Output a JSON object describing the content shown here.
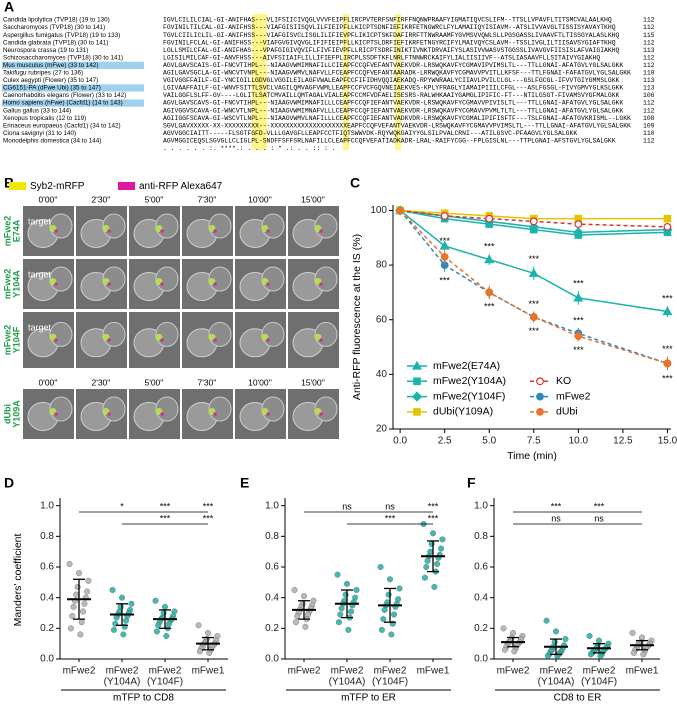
{
  "panel_labels": [
    "A",
    "B",
    "C",
    "D",
    "E",
    "F"
  ],
  "alignment": {
    "rows": [
      {
        "name": "Candida lipolytica (TVP18) (19 to 130)",
        "seq": "IGVLCILILCIAL-GI-ANIFHAS---VLIFSIICIVQGLVVVFEIPFLIRCPVTERFSNFIRFFNQNWPRAAFYIGMATIQVCSLIFM--TTSLLVPAVFLTITSMCVALAALKHQ",
        "end": 112
      },
      {
        "name": "Saccharomyces (TVP18) (30 to 141)",
        "seq": "FGVINILTILCAL-GI-ANIFHSS---VIAFGISIISQVLILFIEIPFLLKICPTSDNFIEFIKRFETNGWRCLFYLAMAIIQYISIAVM--ATSLIVVAVGLTISSISYAVAYTKHQ",
        "end": 112
      },
      {
        "name": "Aspergillus fumigatus (TVP18) (19 to 133)",
        "seq": "TGVLCIILICLIL-GI-ANIFHSS---VIAFGISVCLISGLILIFIEVPFLIKICPTSKFDAFIRRFTTNWRAAMFYGVMSVVQWLSLLPGSGASSLIVAAVFTLTISSGYALASLKHQ",
        "end": 115
      },
      {
        "name": "Candida glabrata (TVP18) (30 to 141)",
        "seq": "FGVINILFCLAL-GI-ANIFHSS---VIAFGVGIVQVGLIFIFIEIPFLLKICPTSLDRFIEFIKRFETNGYRCIFYLMAIVQYCSLAVM--TSSLIVGLILTIISAVSYGIAFTKHQ",
        "end": 112
      },
      {
        "name": "Neurospora crassa (19 to 131)",
        "seq": "LGLLSMILCFAL-GI-ANIFHAS---VPAFGIGIVQVIFLFIVFIEVPFLLRICPTSDRFINIKTIVNKTDRVAIFYSLASIVVWASVSTGGSSLIVAVGVFIISISLAFVAIGIAKHQ",
        "end": 113
      },
      {
        "name": "Schizosaccharomyces (TVP18) (30 to 141)",
        "seq": "LGISILMILCAF-GI-ANVFHSS---AIVFSIIAIFLILLIFIEFPLIRCPLSSDFTKFLNRLFTNNWRCKAIFYLIALIISIIVF--ATSLIASAAVFLLSITAIVYGIAKHQ",
        "end": 112
      },
      {
        "name": "Mus musculus (mFwe) (33 to 142)",
        "seq": "AGVLGAVSCAIS-GI-FNCVTIHPL---NIAAGVWMIMNAFILLCIEAPFCCQFVEFANTVAEKVDR-LRSWQKAVFYCGMAVIPVIMSLTL---TTLLGNAI-AFATGVLYGLSALGKK",
        "end": 112,
        "highlight": true
      },
      {
        "name": "Takifugu rubripes (27 to 136)",
        "seq": "AGILGAVSGCLA-GI-WNCVTVNPL---NIAAGVWMVLNAFVLLFCEAPFCCQFVEFANTAARADK-LRRWQKAVFYCGMAVVPVITLLKFSF---TTLFGNAI-FAFATGVLYGLSALGKK",
        "end": 110
      },
      {
        "name": "Culex aegypti (Flower) (35 to 147)",
        "seq": "VGIVGGFFAILF-GI-YNCIGILLGDVGLVGGILEILAGFVWALEAPFCCFIFIDHVQQIAEKADQ-RPYWNRAALYCIIAVLPVILCLGL---GSLFGCGL-IFVVTGIYGMMSLGKK",
        "end": 113
      },
      {
        "name": "CG6151-PA (dFwe Ubi) (35 to 147)",
        "seq": "LGIVAAFFAILF-GI-WNVFSITTLSVCLVAGILQMVAGFVWMLLEAPFCCFVCFGQVNEIAEKVES-KPLYFRAGLYIAMAIPIIILCFGL---ASLFGSGL-FIVYGMVYGLKSLGKK",
        "end": 113,
        "highlight": true
      },
      {
        "name": "Caenorhabditis elegans (Flower) (33 to 142)",
        "seq": "VAILGGFLSLFF-GV----LGLITLSATCMVAILLQMTAGALVIALEAPFCCMFVDFAELISESRS-RALWHKAAIYGAMGLIPIFIC-FT---NTILGSGT-FIVAMSVYGFMALGKK",
        "end": 106
      },
      {
        "name": "Homo sapiens (hFwe) (Cacfd1) (14 to 143)",
        "seq": "AGVLGAVSCAVS-GI-FNCVTIHPL---NIAAGVWMIMNAFILLLCEAPFCCQFIEFANTVAEKVDR-LRSWQKAVFYCGMAVVPIVISLTL---TTLLGNAI-AFATGVLYGLSALGKK",
        "end": 112,
        "highlight": true
      },
      {
        "name": "Gallus gallus (33 to 144)",
        "seq": "AGIVGGVSCAVA-GI-WNCVTLNPL---NIAAGVWMIMNAFVLLLCEAPFCCQFIEFANTVAEKVDR-LRSWQKAVFYCGMAVVPVMLTLTL---TTLLGNAI-AFATGVLYGLSALGKK",
        "end": 112
      },
      {
        "name": "Xenopus tropicalis (12 to 119)",
        "seq": "AGIIGGFSCAVA-GI-WSCVTLNPL---NIAAGVWMVLNAFILLLCEAPFCCQFIEFANTVADKVDR-LRSWQKAVFYCGMALIPIFISFTF---TSLFGNAI-AFATGVKRISML--LGKK",
        "end": 108
      },
      {
        "name": "Erinaceus europaeus (Cacfd1) (34 to 142)",
        "seq": "SGVLGAVXXXXX-XX-XXXXXXXXX---XXXXXXXXXXXXXXXXXXXXEAPFCCQFVEFANTVAEKVDR-LRSWQKAVFYCGMAVVPVIMSLTL---TTLLGNAI-AFATGVLYGLSALGKK",
        "end": 109
      },
      {
        "name": "Ciona savignyi (31 to 140)",
        "seq": "AGVVGGCIAITT-----FLSGTFGFD-VLLLGAVGFLLEAPFCCTFIQTSWWVDK-RQYWQKGAIYYGLSILPVALCRNI---ATILGSVC-PFAAGVLYGLSALGKK",
        "end": 110
      },
      {
        "name": "Monodelphis domestica (34 to 144)",
        "seq": "AGVMGGICEQSLSGVGLLCLIGLPL-SNDFFSFFSRLNAFILLCLEAPFCCQFVEFATIADKADR-LRAL-RAIFYCGG--FPLGISLNL---TTPLGNAI-AFSTGVLYGLSALGKK",
        "end": 112
      }
    ],
    "consensus": ".  .       .  .   .                      .   :.  ****.:   .     .  .      :  *  .:      .  .       :: :  ."
  },
  "microscopy": {
    "legend": [
      {
        "name": "Syb2-mRFP",
        "color": "#f2e600"
      },
      {
        "name": "anti-RFP Alexa647",
        "color": "#e0179a"
      }
    ],
    "times": [
      "0'00''",
      "2'30''",
      "5'00''",
      "7'30''",
      "10'00''",
      "15'00''"
    ],
    "rows": [
      {
        "label": [
          "mFwe2",
          "E74A"
        ],
        "target": "target"
      },
      {
        "label": [
          "mFwe2",
          "Y104A"
        ],
        "target": "target"
      },
      {
        "label": [
          "mFwe2",
          "Y104F"
        ],
        "target": "target"
      },
      {
        "label": [
          "dUbi",
          "Y109A"
        ]
      }
    ]
  },
  "chart_data": [
    {
      "type": "line",
      "xlabel": "Time (min)",
      "ylabel": "Anti-RFP fluorescence at the IS (%)",
      "x": [
        0,
        2.5,
        5,
        7.5,
        10,
        15
      ],
      "xlim": [
        -0.4,
        15.2
      ],
      "xticks": [
        {
          "value": 0,
          "label": "0.0"
        },
        2.5,
        {
          "value": 5,
          "label": "5.0"
        },
        7.5,
        {
          "value": 10,
          "label": "10.0"
        },
        12.5,
        {
          "value": 15,
          "label": "15.0"
        }
      ],
      "ylim": [
        20,
        102
      ],
      "yticks": [
        20,
        40,
        60,
        80,
        100
      ],
      "series": [
        {
          "name": "mFwe2(E74A)",
          "color": "#1cb3ad",
          "marker": "triangle",
          "dashed": false,
          "values": [
            100,
            87,
            82,
            77,
            68,
            63
          ],
          "errors": [
            0,
            1.5,
            2,
            2.5,
            2.5,
            2
          ],
          "labels": [
            null,
            null,
            "***",
            "***",
            "***",
            "***"
          ]
        },
        {
          "name": "mFwe2(Y104A)",
          "color": "#1cb3ad",
          "marker": "square",
          "dashed": false,
          "values": [
            100,
            97,
            95,
            93,
            91,
            92
          ],
          "errors": [
            0,
            1,
            1,
            1,
            1,
            1
          ],
          "labels": [
            null,
            null,
            null,
            null,
            null,
            null
          ]
        },
        {
          "name": "mFwe2(Y104F)",
          "color": "#1cb3ad",
          "marker": "diamond",
          "dashed": false,
          "values": [
            100,
            98,
            96,
            94,
            92,
            93
          ],
          "errors": [
            0,
            1,
            1,
            1,
            1,
            1
          ],
          "labels": [
            null,
            null,
            null,
            null,
            null,
            null
          ]
        },
        {
          "name": "dUbi(Y109A)",
          "color": "#e2c400",
          "marker": "square",
          "dashed": false,
          "values": [
            100,
            99,
            98,
            97,
            97,
            97
          ],
          "errors": [
            0,
            0.5,
            0.5,
            0.5,
            0.5,
            0.5
          ],
          "labels": [
            null,
            null,
            null,
            null,
            null,
            null
          ]
        },
        {
          "name": "KO",
          "color": "#e0302b",
          "marker": "circle-open",
          "dashed": true,
          "values": [
            100,
            98,
            97,
            96,
            95,
            94
          ],
          "errors": [
            0,
            1,
            1,
            1,
            1,
            1
          ],
          "labels": [
            null,
            null,
            null,
            null,
            null,
            null
          ]
        },
        {
          "name": "mFwe2",
          "color": "#2e86c1",
          "marker": "circle",
          "dashed": true,
          "values": [
            100,
            80,
            70,
            61,
            55,
            44
          ],
          "errors": [
            0,
            2.5,
            2,
            2,
            2,
            2.5
          ],
          "labels": [
            null,
            "***",
            "***",
            "***",
            "***",
            "***"
          ]
        },
        {
          "name": "dUbi",
          "color": "#e8742c",
          "marker": "circle",
          "dashed": true,
          "values": [
            100,
            83,
            70,
            61,
            54,
            44
          ],
          "errors": [
            0,
            3,
            2.5,
            2,
            2,
            2.5
          ],
          "labels": [
            null,
            "***",
            null,
            "***",
            "***",
            "***"
          ]
        }
      ]
    },
    {
      "type": "strip",
      "ylabel": "Manders' coefficient",
      "xlabel": "mTFP to CD8",
      "categories": [
        [
          "mFwe2"
        ],
        [
          "mFwe2",
          "(Y104A)"
        ],
        [
          "mFwe2",
          "(Y104F)"
        ],
        [
          "mFwe1"
        ]
      ],
      "colors": [
        "#b3b3b3",
        "#2bb5a9",
        "#2bb5a9",
        "#b3b3b3"
      ],
      "ylim": [
        0,
        1.05
      ],
      "yticks": [
        {
          "value": 0,
          "label": "0.0"
        },
        0.2,
        0.4,
        0.6,
        0.8,
        {
          "value": 1,
          "label": "1.0"
        }
      ],
      "groups": [
        [
          0.62,
          0.56,
          0.51,
          0.47,
          0.44,
          0.42,
          0.4,
          0.38,
          0.36,
          0.34,
          0.31,
          0.28,
          0.24,
          0.2,
          0.16
        ],
        [
          0.45,
          0.4,
          0.36,
          0.34,
          0.32,
          0.31,
          0.3,
          0.29,
          0.28,
          0.27,
          0.25,
          0.23,
          0.21,
          0.19,
          0.16
        ],
        [
          0.38,
          0.34,
          0.31,
          0.3,
          0.28,
          0.27,
          0.26,
          0.26,
          0.25,
          0.24,
          0.23,
          0.22,
          0.2,
          0.18,
          0.15
        ],
        [
          0.22,
          0.17,
          0.15,
          0.13,
          0.12,
          0.11,
          0.1,
          0.1,
          0.09,
          0.08,
          0.08,
          0.07,
          0.06,
          0.05,
          0.04
        ]
      ],
      "means": [
        0.39,
        0.29,
        0.26,
        0.1
      ],
      "sds": [
        0.13,
        0.07,
        0.06,
        0.04
      ],
      "significance": [
        [
          null,
          "*",
          "***",
          "***"
        ],
        [
          null,
          null,
          "***",
          "***"
        ]
      ]
    },
    {
      "type": "strip",
      "xlabel": "mTFP to ER",
      "categories": [
        [
          "mFwe2"
        ],
        [
          "mFwe2",
          "(Y104A)"
        ],
        [
          "mFwe2",
          "(Y104F)"
        ],
        [
          "mFwe1"
        ]
      ],
      "colors": [
        "#b3b3b3",
        "#2bb5a9",
        "#2bb5a9",
        "#2bb5a9"
      ],
      "ylim": [
        0,
        1.05
      ],
      "yticks": [
        {
          "value": 0,
          "label": "0.0"
        },
        0.2,
        0.4,
        0.6,
        0.8,
        {
          "value": 1,
          "label": "1.0"
        }
      ],
      "groups": [
        [
          0.45,
          0.41,
          0.38,
          0.36,
          0.35,
          0.34,
          0.33,
          0.32,
          0.31,
          0.3,
          0.29,
          0.28,
          0.26,
          0.24,
          0.21
        ],
        [
          0.55,
          0.49,
          0.45,
          0.42,
          0.4,
          0.38,
          0.37,
          0.36,
          0.35,
          0.33,
          0.31,
          0.29,
          0.27,
          0.24,
          0.19
        ],
        [
          0.6,
          0.52,
          0.46,
          0.42,
          0.39,
          0.37,
          0.36,
          0.35,
          0.34,
          0.32,
          0.29,
          0.26,
          0.23,
          0.19,
          0.16
        ],
        [
          0.88,
          0.82,
          0.78,
          0.75,
          0.72,
          0.7,
          0.68,
          0.67,
          0.66,
          0.64,
          0.62,
          0.6,
          0.57,
          0.53,
          0.47
        ]
      ],
      "means": [
        0.32,
        0.36,
        0.35,
        0.67
      ],
      "sds": [
        0.06,
        0.09,
        0.11,
        0.1
      ],
      "significance": [
        [
          null,
          "ns",
          "ns",
          "***"
        ],
        [
          null,
          null,
          "***",
          "***"
        ]
      ]
    },
    {
      "type": "strip",
      "xlabel": "CD8 to ER",
      "categories": [
        [
          "mFwe2"
        ],
        [
          "mFwe2",
          "(Y104A)"
        ],
        [
          "mFwe2",
          "(Y104F)"
        ],
        [
          "mFwe1"
        ]
      ],
      "colors": [
        "#b3b3b3",
        "#2bb5a9",
        "#2bb5a9",
        "#b3b3b3"
      ],
      "ylim": [
        0,
        1.05
      ],
      "yticks": [
        {
          "value": 0,
          "label": "0.0"
        },
        0.2,
        0.4,
        0.6,
        0.8,
        {
          "value": 1,
          "label": "1.0"
        }
      ],
      "groups": [
        [
          0.2,
          0.17,
          0.15,
          0.14,
          0.13,
          0.12,
          0.11,
          0.11,
          0.1,
          0.1,
          0.09,
          0.08,
          0.07,
          0.06,
          0.05
        ],
        [
          0.25,
          0.18,
          0.13,
          0.11,
          0.09,
          0.08,
          0.07,
          0.06,
          0.05,
          0.05,
          0.04,
          0.03,
          0.03,
          0.02,
          0.02
        ],
        [
          0.15,
          0.12,
          0.1,
          0.09,
          0.08,
          0.07,
          0.07,
          0.06,
          0.06,
          0.05,
          0.05,
          0.04,
          0.03,
          0.03,
          0.02
        ],
        [
          0.17,
          0.14,
          0.12,
          0.11,
          0.1,
          0.1,
          0.09,
          0.09,
          0.08,
          0.07,
          0.07,
          0.06,
          0.05,
          0.04,
          0.03
        ]
      ],
      "means": [
        0.11,
        0.08,
        0.07,
        0.09
      ],
      "sds": [
        0.03,
        0.05,
        0.03,
        0.03
      ],
      "significance": [
        [
          null,
          "***",
          "***",
          null
        ],
        [
          null,
          "ns",
          "ns",
          null
        ]
      ]
    }
  ]
}
